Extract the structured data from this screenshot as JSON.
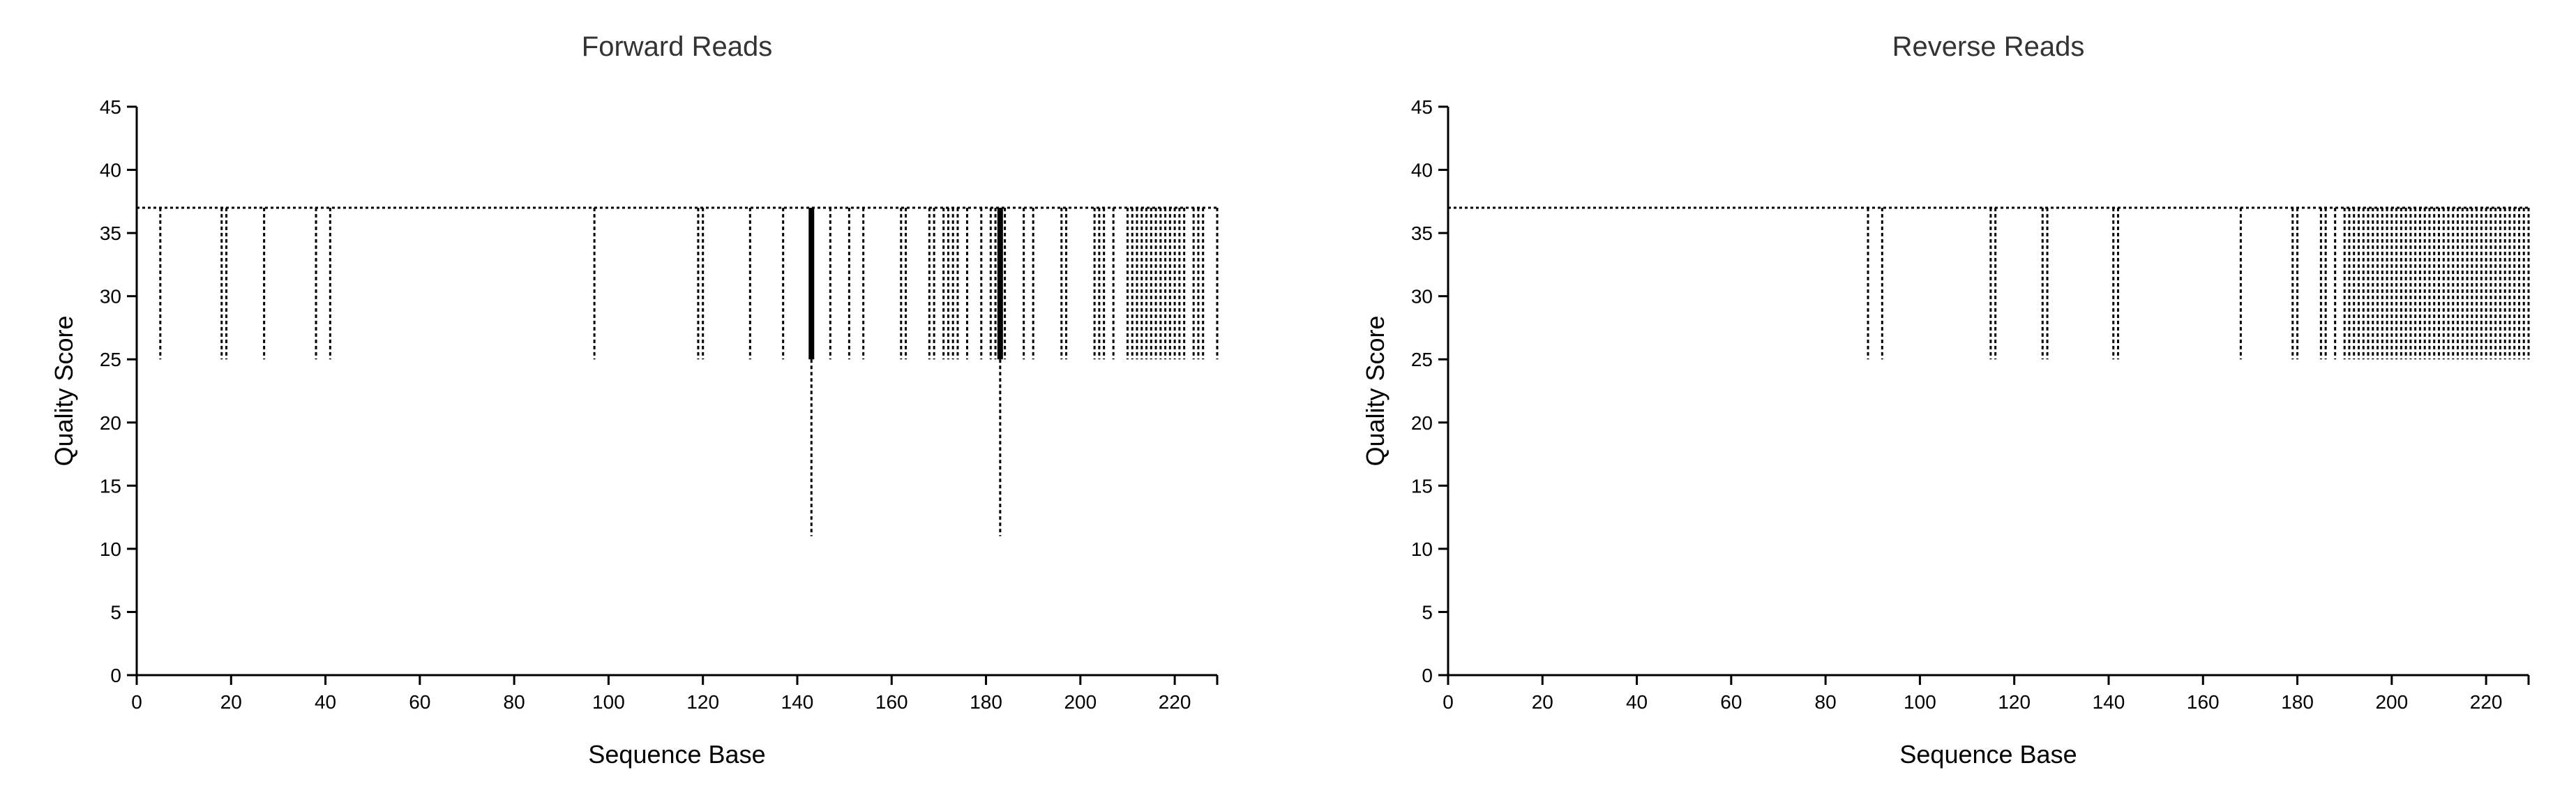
{
  "chart_data": [
    {
      "type": "box",
      "title": "Forward Reads",
      "xlabel": "Sequence Base",
      "ylabel": "Quality Score",
      "xlim": [
        0,
        229
      ],
      "ylim": [
        0,
        45
      ],
      "xticks": [
        0,
        20,
        40,
        60,
        80,
        100,
        120,
        140,
        160,
        180,
        200,
        220
      ],
      "yticks": [
        0,
        5,
        10,
        15,
        20,
        25,
        30,
        35,
        40,
        45
      ],
      "baseline": 37,
      "low_whisker_positions": [
        5,
        18,
        19,
        27,
        38,
        41,
        97,
        119,
        120,
        130,
        137,
        143,
        147,
        151,
        154,
        162,
        163,
        168,
        169,
        171,
        172,
        173,
        174,
        176,
        179,
        181,
        182,
        183,
        184,
        188,
        190,
        196,
        197,
        203,
        204,
        205,
        207,
        210,
        211,
        212,
        213,
        214,
        215,
        216,
        217,
        218,
        219,
        220,
        221,
        222,
        224,
        225,
        226,
        229
      ],
      "boxes": [
        {
          "x": 143,
          "q1": 25,
          "median": 37,
          "q3": 37,
          "whisker_low": 11,
          "whisker_high": 37
        },
        {
          "x": 183,
          "q1": 25,
          "median": 37,
          "q3": 37,
          "whisker_low": 11,
          "whisker_high": 37
        }
      ],
      "whisker_low_value": 25,
      "tick_labels_x": [
        "0",
        "20",
        "40",
        "60",
        "80",
        "100",
        "120",
        "140",
        "160",
        "180",
        "200",
        "220"
      ],
      "tick_labels_y": [
        "0",
        "5",
        "10",
        "15",
        "20",
        "25",
        "30",
        "35",
        "40",
        "45"
      ]
    },
    {
      "type": "box",
      "title": "Reverse Reads",
      "xlabel": "Sequence Base",
      "ylabel": "Quality Score",
      "xlim": [
        0,
        229
      ],
      "ylim": [
        0,
        45
      ],
      "xticks": [
        0,
        20,
        40,
        60,
        80,
        100,
        120,
        140,
        160,
        180,
        200,
        220
      ],
      "yticks": [
        0,
        5,
        10,
        15,
        20,
        25,
        30,
        35,
        40,
        45
      ],
      "baseline": 37,
      "low_whisker_positions": [
        89,
        92,
        115,
        116,
        126,
        127,
        141,
        142,
        168,
        179,
        180,
        185,
        186,
        188,
        190,
        191,
        192,
        193,
        194,
        195,
        196,
        197,
        198,
        199,
        200,
        201,
        202,
        203,
        204,
        205,
        206,
        207,
        208,
        209,
        210,
        211,
        212,
        213,
        214,
        215,
        216,
        217,
        218,
        219,
        220,
        221,
        222,
        223,
        224,
        225,
        226,
        227,
        228,
        229
      ],
      "boxes": [],
      "whisker_low_value": 25,
      "tick_labels_x": [
        "0",
        "20",
        "40",
        "60",
        "80",
        "100",
        "120",
        "140",
        "160",
        "180",
        "200",
        "220"
      ],
      "tick_labels_y": [
        "0",
        "5",
        "10",
        "15",
        "20",
        "25",
        "30",
        "35",
        "40",
        "45"
      ]
    }
  ]
}
